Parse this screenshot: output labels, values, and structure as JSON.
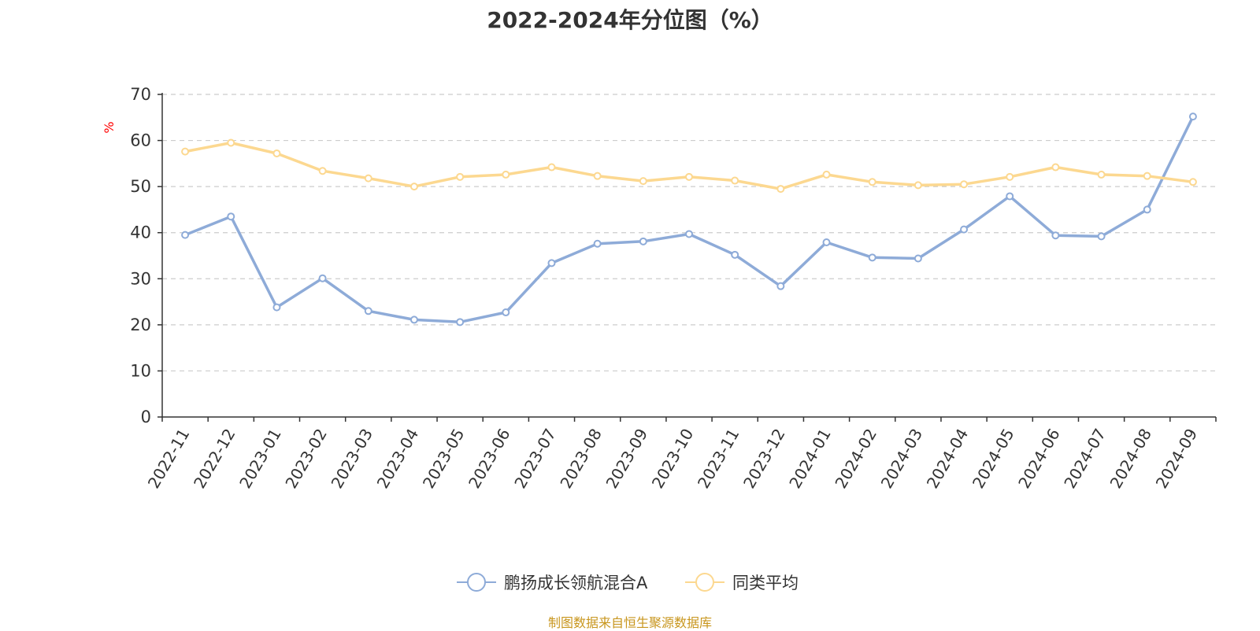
{
  "chart_data": {
    "type": "line",
    "title": "2022-2024年分位图（%）",
    "ylabel": "%",
    "xlabel": "",
    "ylim": [
      0,
      70
    ],
    "yticks": [
      0,
      10,
      20,
      30,
      40,
      50,
      60,
      70
    ],
    "grid": true,
    "legend_position": "bottom-center",
    "categories": [
      "2022-11",
      "2022-12",
      "2023-01",
      "2023-02",
      "2023-03",
      "2023-04",
      "2023-05",
      "2023-06",
      "2023-07",
      "2023-08",
      "2023-09",
      "2023-10",
      "2023-11",
      "2023-12",
      "2024-01",
      "2024-02",
      "2024-03",
      "2024-04",
      "2024-05",
      "2024-06",
      "2024-07",
      "2024-08",
      "2024-09"
    ],
    "series": [
      {
        "name": "鹏扬成长领航混合A",
        "color": "#8eabd8",
        "values": [
          39.5,
          43.5,
          23.8,
          30.1,
          23.0,
          21.1,
          20.6,
          22.7,
          33.4,
          37.6,
          38.1,
          39.7,
          35.2,
          28.4,
          37.9,
          34.6,
          34.4,
          40.7,
          47.9,
          39.4,
          39.2,
          45.0,
          65.2
        ]
      },
      {
        "name": "同类平均",
        "color": "#fcd890",
        "values": [
          57.6,
          59.5,
          57.2,
          53.4,
          51.8,
          50.0,
          52.1,
          52.6,
          54.2,
          52.3,
          51.2,
          52.1,
          51.3,
          49.5,
          52.6,
          51.0,
          50.3,
          50.5,
          52.1,
          54.2,
          52.6,
          52.3,
          51.0
        ]
      }
    ]
  },
  "source_note": "制图数据来自恒生聚源数据库"
}
